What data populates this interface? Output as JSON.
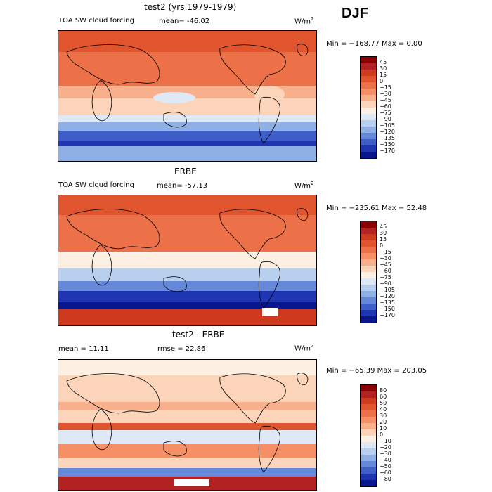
{
  "season": "DJF",
  "panels": [
    {
      "title": "test2 (yrs 1979-1979)",
      "variable": "TOA SW cloud forcing",
      "stat1": "mean= -46.02",
      "stat2": "",
      "units_base": "W/m",
      "units_exp": "2",
      "minmax": "Min = −168.77 Max =    0.00",
      "levels": [
        "45",
        "30",
        "15",
        "0",
        "−15",
        "−30",
        "−45",
        "−60",
        "−75",
        "−90",
        "−105",
        "−120",
        "−135",
        "−150",
        "−170"
      ]
    },
    {
      "title": "ERBE",
      "variable": "TOA SW cloud forcing",
      "stat1": "mean= -57.13",
      "stat2": "",
      "units_base": "W/m",
      "units_exp": "2",
      "minmax": "Min = −235.61 Max =  52.48",
      "levels": [
        "45",
        "30",
        "15",
        "0",
        "−15",
        "−30",
        "−45",
        "−60",
        "−75",
        "−90",
        "−105",
        "−120",
        "−135",
        "−150",
        "−170"
      ]
    },
    {
      "title": "test2 - ERBE",
      "variable": "",
      "stat1": "mean =   11.11",
      "stat2": "rmse =   22.86",
      "units_base": "W/m",
      "units_exp": "2",
      "minmax": "Min = −65.39 Max = 203.05",
      "levels": [
        "80",
        "60",
        "50",
        "40",
        "30",
        "20",
        "10",
        "0",
        "−10",
        "−20",
        "−30",
        "−40",
        "−50",
        "−60",
        "−80"
      ]
    }
  ],
  "colorbar_colors": [
    "#8b0000",
    "#b22222",
    "#cd3a1e",
    "#e0552e",
    "#ec7048",
    "#f59066",
    "#f7b08b",
    "#fbd4ba",
    "#fdf0e3",
    "#dfe9f6",
    "#b9cfee",
    "#8fb0e4",
    "#6688d8",
    "#3f5fc8",
    "#1f35b2",
    "#0a168e"
  ],
  "chart_data": [
    {
      "type": "heatmap",
      "title": "test2 (yrs 1979-1979)",
      "variable": "TOA SW cloud forcing",
      "units": "W/m2",
      "mean": -46.02,
      "min": -168.77,
      "max": 0.0,
      "contour_levels": [
        45,
        30,
        15,
        0,
        -15,
        -30,
        -45,
        -60,
        -75,
        -90,
        -105,
        -120,
        -135,
        -150,
        -170
      ]
    },
    {
      "type": "heatmap",
      "title": "ERBE",
      "variable": "TOA SW cloud forcing",
      "units": "W/m2",
      "mean": -57.13,
      "min": -235.61,
      "max": 52.48,
      "contour_levels": [
        45,
        30,
        15,
        0,
        -15,
        -30,
        -45,
        -60,
        -75,
        -90,
        -105,
        -120,
        -135,
        -150,
        -170
      ]
    },
    {
      "type": "heatmap",
      "title": "test2 - ERBE",
      "units": "W/m2",
      "mean": 11.11,
      "rmse": 22.86,
      "min": -65.39,
      "max": 203.05,
      "contour_levels": [
        80,
        60,
        50,
        40,
        30,
        20,
        10,
        0,
        -10,
        -20,
        -30,
        -40,
        -50,
        -60,
        -80
      ]
    }
  ]
}
